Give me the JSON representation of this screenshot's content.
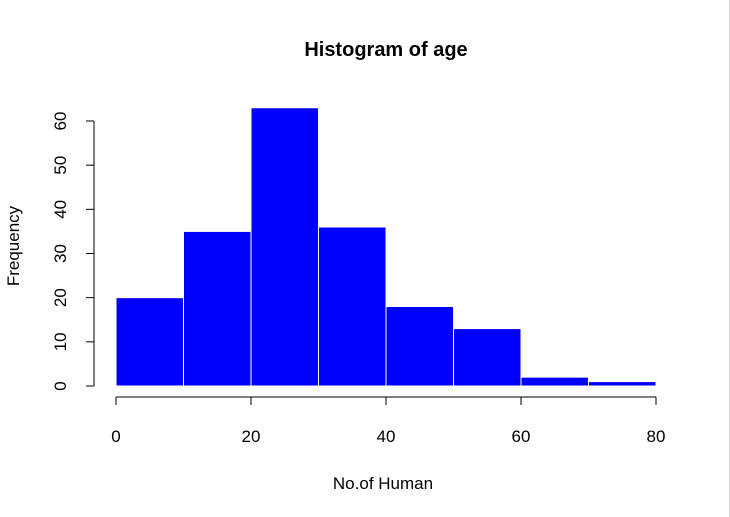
{
  "chart_data": {
    "type": "bar",
    "title": "Histogram of age",
    "xlabel": "No.of Human",
    "ylabel": "Frequency",
    "bins": [
      {
        "start": 0,
        "end": 10,
        "count": 20
      },
      {
        "start": 10,
        "end": 20,
        "count": 35
      },
      {
        "start": 20,
        "end": 30,
        "count": 63
      },
      {
        "start": 30,
        "end": 40,
        "count": 36
      },
      {
        "start": 40,
        "end": 50,
        "count": 18
      },
      {
        "start": 50,
        "end": 60,
        "count": 13
      },
      {
        "start": 60,
        "end": 70,
        "count": 2
      },
      {
        "start": 70,
        "end": 80,
        "count": 1
      }
    ],
    "x_ticks": [
      "0",
      "20",
      "40",
      "60",
      "80"
    ],
    "y_ticks": [
      "0",
      "10",
      "20",
      "30",
      "40",
      "50",
      "60"
    ],
    "xlim": [
      0,
      80
    ],
    "ylim": [
      0,
      60
    ],
    "grid": false,
    "colors": {
      "bar_fill": "#0000ff",
      "bar_border": "#ffffff",
      "axis": "#000000"
    }
  }
}
